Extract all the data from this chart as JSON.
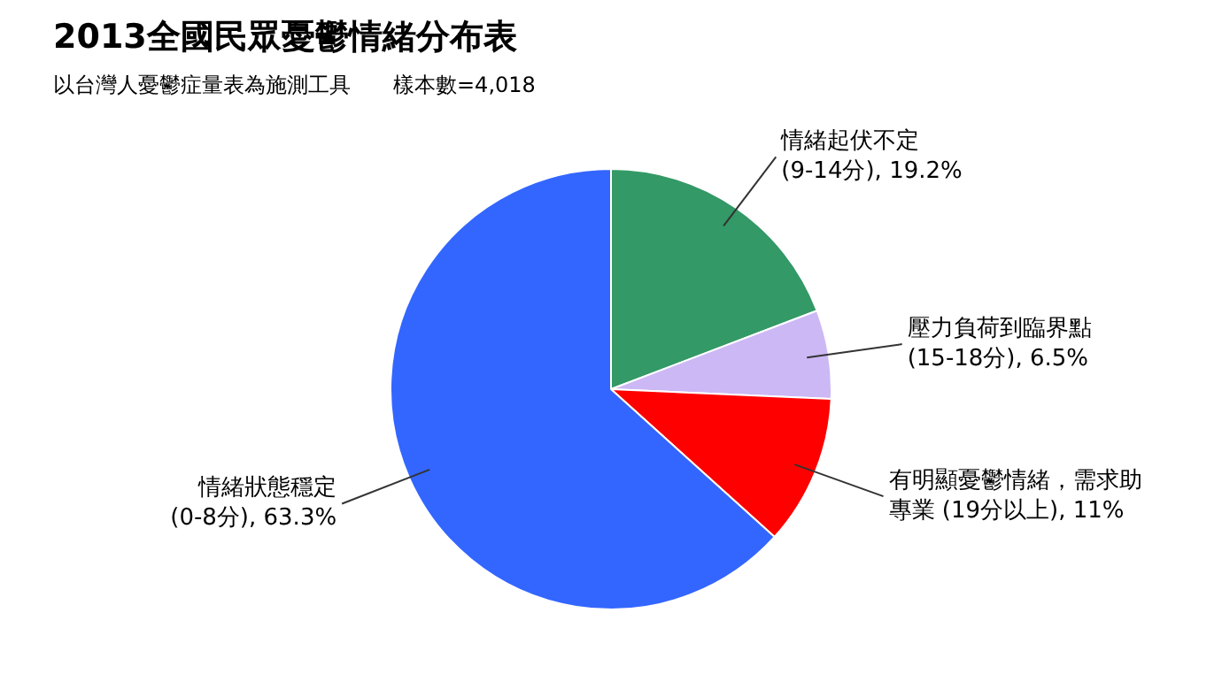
{
  "chart_data": {
    "type": "pie",
    "title": "2013全國民眾憂鬱情緒分布表",
    "subtitle": "以台灣人憂鬱症量表為施測工具　　樣本數=4,018",
    "categories": [
      "情緒起伏不定 (9-14分)",
      "壓力負荷到臨界點(15-18分)",
      "有明顯憂鬱情緒，需求助專業 (19分以上)",
      "情緒狀態穩定 (0-8分)"
    ],
    "values": [
      19.2,
      6.5,
      11,
      63.3
    ],
    "value_labels": [
      "19.2%",
      "6.5%",
      "11%",
      "63.3%"
    ],
    "colors": [
      "#339966",
      "#ccb8f5",
      "#ff0000",
      "#3366ff"
    ],
    "legend": false
  }
}
